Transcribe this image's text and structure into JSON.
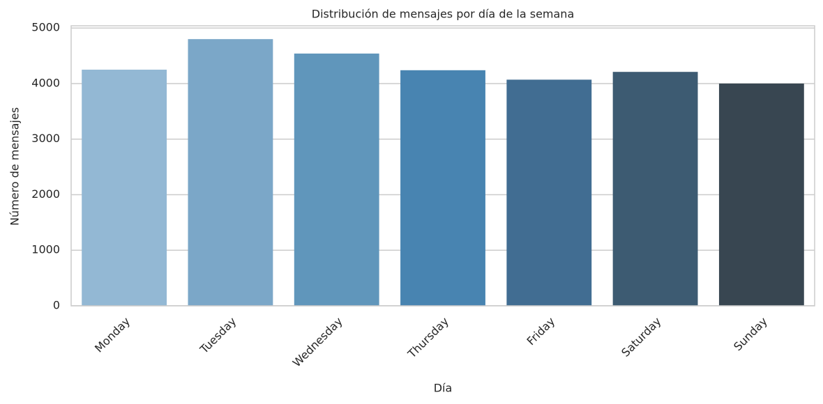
{
  "chart_data": {
    "type": "bar",
    "title": "Distribución de mensajes por día de la semana",
    "x_label": "Día",
    "y_label": "Número de mensajes",
    "categories": [
      "Monday",
      "Tuesday",
      "Wednesday",
      "Thursday",
      "Friday",
      "Saturday",
      "Sunday"
    ],
    "values": [
      4250,
      4800,
      4540,
      4240,
      4070,
      4210,
      4000
    ],
    "colors": [
      "#93b8d4",
      "#7ba7c8",
      "#6096bb",
      "#4884b1",
      "#416d92",
      "#3d5b72",
      "#384651"
    ],
    "ylim": [
      0,
      5040
    ],
    "yticks": [
      0,
      1000,
      2000,
      3000,
      4000,
      5000
    ],
    "grid": true
  }
}
